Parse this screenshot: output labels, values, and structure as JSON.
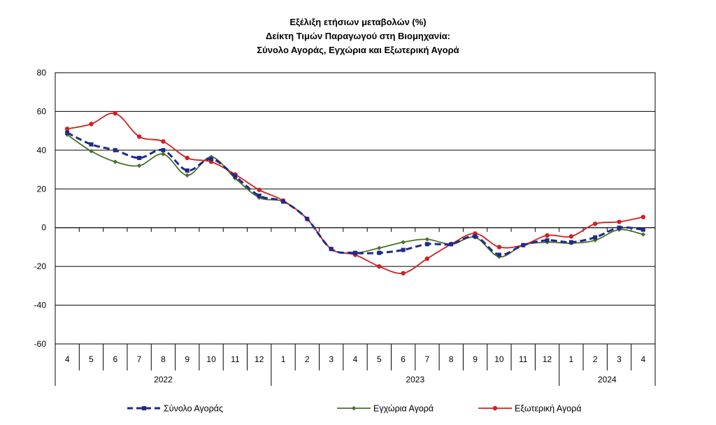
{
  "chart_data": {
    "type": "line",
    "title": [
      "Εξέλιξη ετήσιων μεταβολών (%)",
      "Δείκτη Τιμών Παραγωγού στη Βιομηχανία:",
      "Σύνολο Αγοράς, Εγχώρια και Εξωτερική Αγορά"
    ],
    "ylim": [
      -60,
      80
    ],
    "yticks": [
      80,
      60,
      40,
      20,
      0,
      -20,
      -40,
      -60
    ],
    "grid": true,
    "legend_position": "bottom",
    "categories": [
      "4",
      "5",
      "6",
      "7",
      "8",
      "9",
      "10",
      "11",
      "12",
      "1",
      "2",
      "3",
      "4",
      "5",
      "6",
      "7",
      "8",
      "9",
      "10",
      "11",
      "12",
      "1",
      "2",
      "3",
      "4"
    ],
    "year_groups": [
      {
        "label": "2022",
        "count": 9
      },
      {
        "label": "2023",
        "count": 12
      },
      {
        "label": "2024",
        "count": 4
      }
    ],
    "series": [
      {
        "name": "Σύνολο Αγοράς",
        "color": "#1f2a8a",
        "style": "dashed",
        "marker": "square",
        "values": [
          49,
          43,
          40,
          36,
          40,
          29.5,
          35.5,
          26.5,
          16.5,
          13.5,
          4.5,
          -11,
          -13,
          -13,
          -11.5,
          -8.5,
          -8.5,
          -4.5,
          -14,
          -9,
          -6.5,
          -7.5,
          -5,
          0,
          -1
        ]
      },
      {
        "name": "Εγχώρια Αγορά",
        "color": "#4a6f28",
        "style": "solid",
        "marker": "diamond",
        "values": [
          48,
          39.5,
          34,
          32,
          38,
          27,
          36.5,
          25.5,
          15.5,
          13.5,
          4.5,
          -11,
          -13,
          -10.5,
          -7.5,
          -6,
          -8.5,
          -5,
          -15,
          -9,
          -7.5,
          -8,
          -6.5,
          -1,
          -3.5
        ]
      },
      {
        "name": "Εξωτερική Αγορά",
        "color": "#d21f1f",
        "style": "solid",
        "marker": "circle",
        "values": [
          51,
          53.5,
          59,
          47,
          44.5,
          36,
          34,
          27.5,
          19.5,
          14,
          4.5,
          -11,
          -14,
          -20,
          -23.5,
          -16,
          -8.5,
          -3,
          -10,
          -9,
          -4,
          -4.5,
          2,
          3,
          5.5
        ]
      }
    ]
  }
}
